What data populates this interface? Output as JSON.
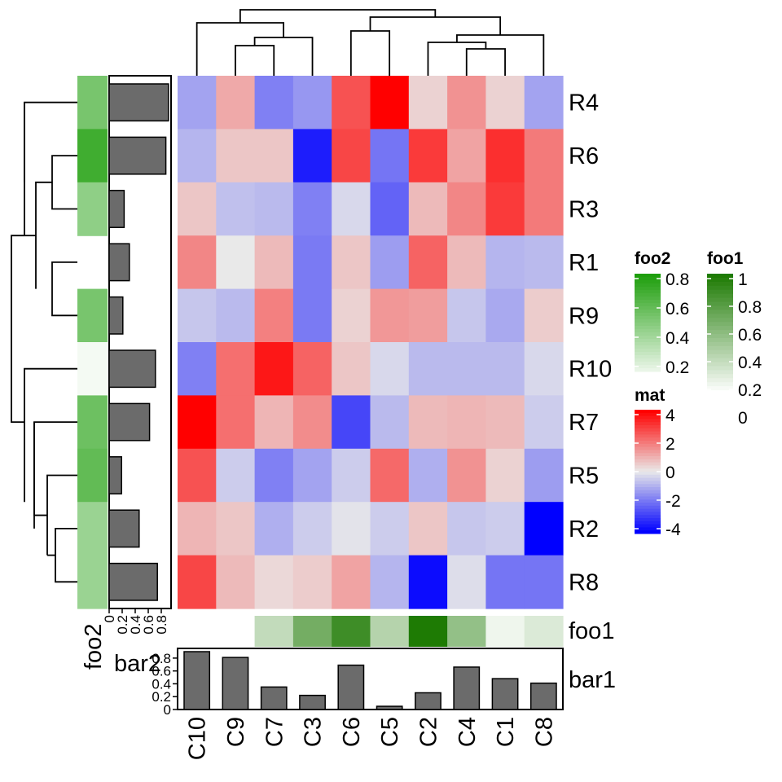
{
  "chart_data": {
    "type": "heatmap",
    "title": "",
    "rows": [
      "R4",
      "R6",
      "R3",
      "R1",
      "R9",
      "R10",
      "R7",
      "R5",
      "R2",
      "R8"
    ],
    "columns": [
      "C10",
      "C9",
      "C7",
      "C3",
      "C6",
      "C5",
      "C2",
      "C4",
      "C1",
      "C8"
    ],
    "values": [
      [
        -1.2,
        1.1,
        -1.8,
        -1.4,
        2.6,
        4.0,
        0.4,
        1.5,
        0.4,
        -1.2
      ],
      [
        -0.9,
        0.6,
        0.6,
        -3.5,
        2.8,
        -2.0,
        3.0,
        1.2,
        3.2,
        1.9
      ],
      [
        0.6,
        -0.7,
        -0.8,
        -1.8,
        -0.3,
        -2.3,
        0.8,
        1.7,
        3.0,
        1.9
      ],
      [
        1.7,
        0.0,
        0.8,
        -1.9,
        0.6,
        -1.3,
        2.3,
        0.8,
        -0.9,
        -0.8
      ],
      [
        -0.6,
        -0.8,
        1.8,
        -1.9,
        0.4,
        1.4,
        1.3,
        -0.6,
        -1.1,
        0.5
      ],
      [
        -1.8,
        2.1,
        3.6,
        2.3,
        0.6,
        -0.3,
        -0.8,
        -0.8,
        -0.8,
        -0.3
      ],
      [
        4.0,
        2.1,
        0.9,
        1.6,
        -2.8,
        -0.8,
        0.8,
        0.9,
        0.8,
        -0.5
      ],
      [
        2.6,
        -0.5,
        -1.8,
        -1.2,
        -0.5,
        2.2,
        -1.0,
        1.5,
        0.4,
        -1.3
      ],
      [
        0.9,
        0.6,
        -1.0,
        -0.5,
        -0.1,
        -0.5,
        0.6,
        -0.6,
        -0.5,
        -4.0
      ],
      [
        2.8,
        0.8,
        0.3,
        0.5,
        1.2,
        -0.9,
        -3.8,
        -0.2,
        -2.0,
        -2.0
      ]
    ],
    "color_scale": {
      "name": "mat",
      "breaks": [
        -4,
        0,
        4
      ],
      "colors": [
        "#0000FF",
        "#E9E9E9",
        "#FF0000"
      ],
      "ticks": [
        "4",
        "2",
        "0",
        "-2",
        "-4"
      ]
    },
    "column_annotation": {
      "name": "foo1",
      "values": [
        0.0,
        0.0,
        0.27,
        0.62,
        0.86,
        0.33,
        1.0,
        0.48,
        0.07,
        0.16
      ],
      "present": [
        false,
        false,
        true,
        true,
        true,
        true,
        true,
        true,
        true,
        true
      ],
      "color_low": "#FFFFFF",
      "color_high": "#1E7B04",
      "legend_ticks": [
        "1",
        "0.8",
        "0.6",
        "0.4",
        "0.2",
        "0"
      ]
    },
    "row_annotation": {
      "name": "foo2",
      "values": [
        0.6,
        0.85,
        0.5,
        0.0,
        0.6,
        0.05,
        0.65,
        0.7,
        0.45,
        0.45
      ],
      "present": [
        true,
        true,
        true,
        false,
        true,
        true,
        true,
        true,
        true,
        true
      ],
      "color_low": "#FFFFFF",
      "color_high": "#1E9E0C",
      "legend_ticks": [
        "0.8",
        "0.6",
        "0.4",
        "0.2"
      ]
    },
    "column_bars": {
      "name": "bar1",
      "values": [
        0.9,
        0.81,
        0.35,
        0.22,
        0.69,
        0.05,
        0.26,
        0.66,
        0.48,
        0.41
      ],
      "ylim": [
        0,
        0.9
      ],
      "ticks": [
        "0",
        "0.2",
        "0.4",
        "0.6",
        "0.8"
      ]
    },
    "row_bars": {
      "name": "bar2",
      "values": [
        0.91,
        0.87,
        0.23,
        0.31,
        0.21,
        0.71,
        0.62,
        0.19,
        0.46,
        0.74
      ],
      "xlim": [
        0,
        0.95
      ],
      "ticks": [
        "0",
        "0.2",
        "0.4",
        "0.6",
        "0.8"
      ]
    },
    "row_annotation_label": "foo2",
    "row_bars_label": "bar2",
    "column_annotation_label": "foo1",
    "column_bars_label": "bar1",
    "column_dendrogram": "present",
    "row_dendrogram": "present"
  },
  "legends": {
    "foo2_title": "foo2",
    "foo1_title": "foo1",
    "mat_title": "mat"
  }
}
